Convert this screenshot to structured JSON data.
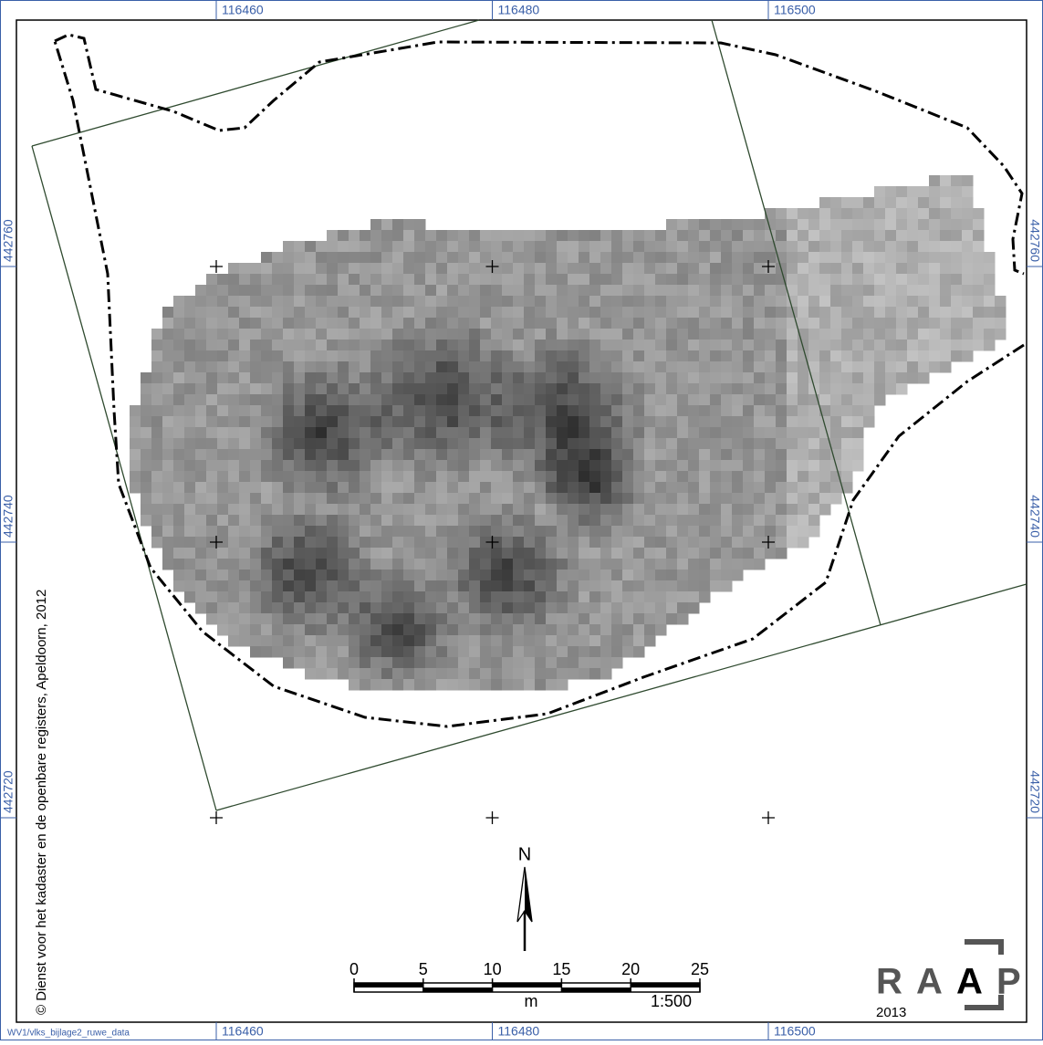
{
  "map": {
    "x_coords": [
      116460,
      116480,
      116500
    ],
    "y_coords": [
      442760,
      442740,
      442720
    ],
    "copyright": "© Dienst voor het kadaster en de openbare registers, Apeldoorn, 2012",
    "north": "N",
    "scale_bar": {
      "ticks": [
        0,
        5,
        10,
        15,
        20,
        25
      ],
      "unit": "m",
      "ratio": "1:500"
    },
    "logo": {
      "letters": [
        "R",
        "A",
        "A",
        "P"
      ],
      "year": "2013"
    },
    "file_name": "WV1/vlks_bijlage2_ruwe_data"
  }
}
